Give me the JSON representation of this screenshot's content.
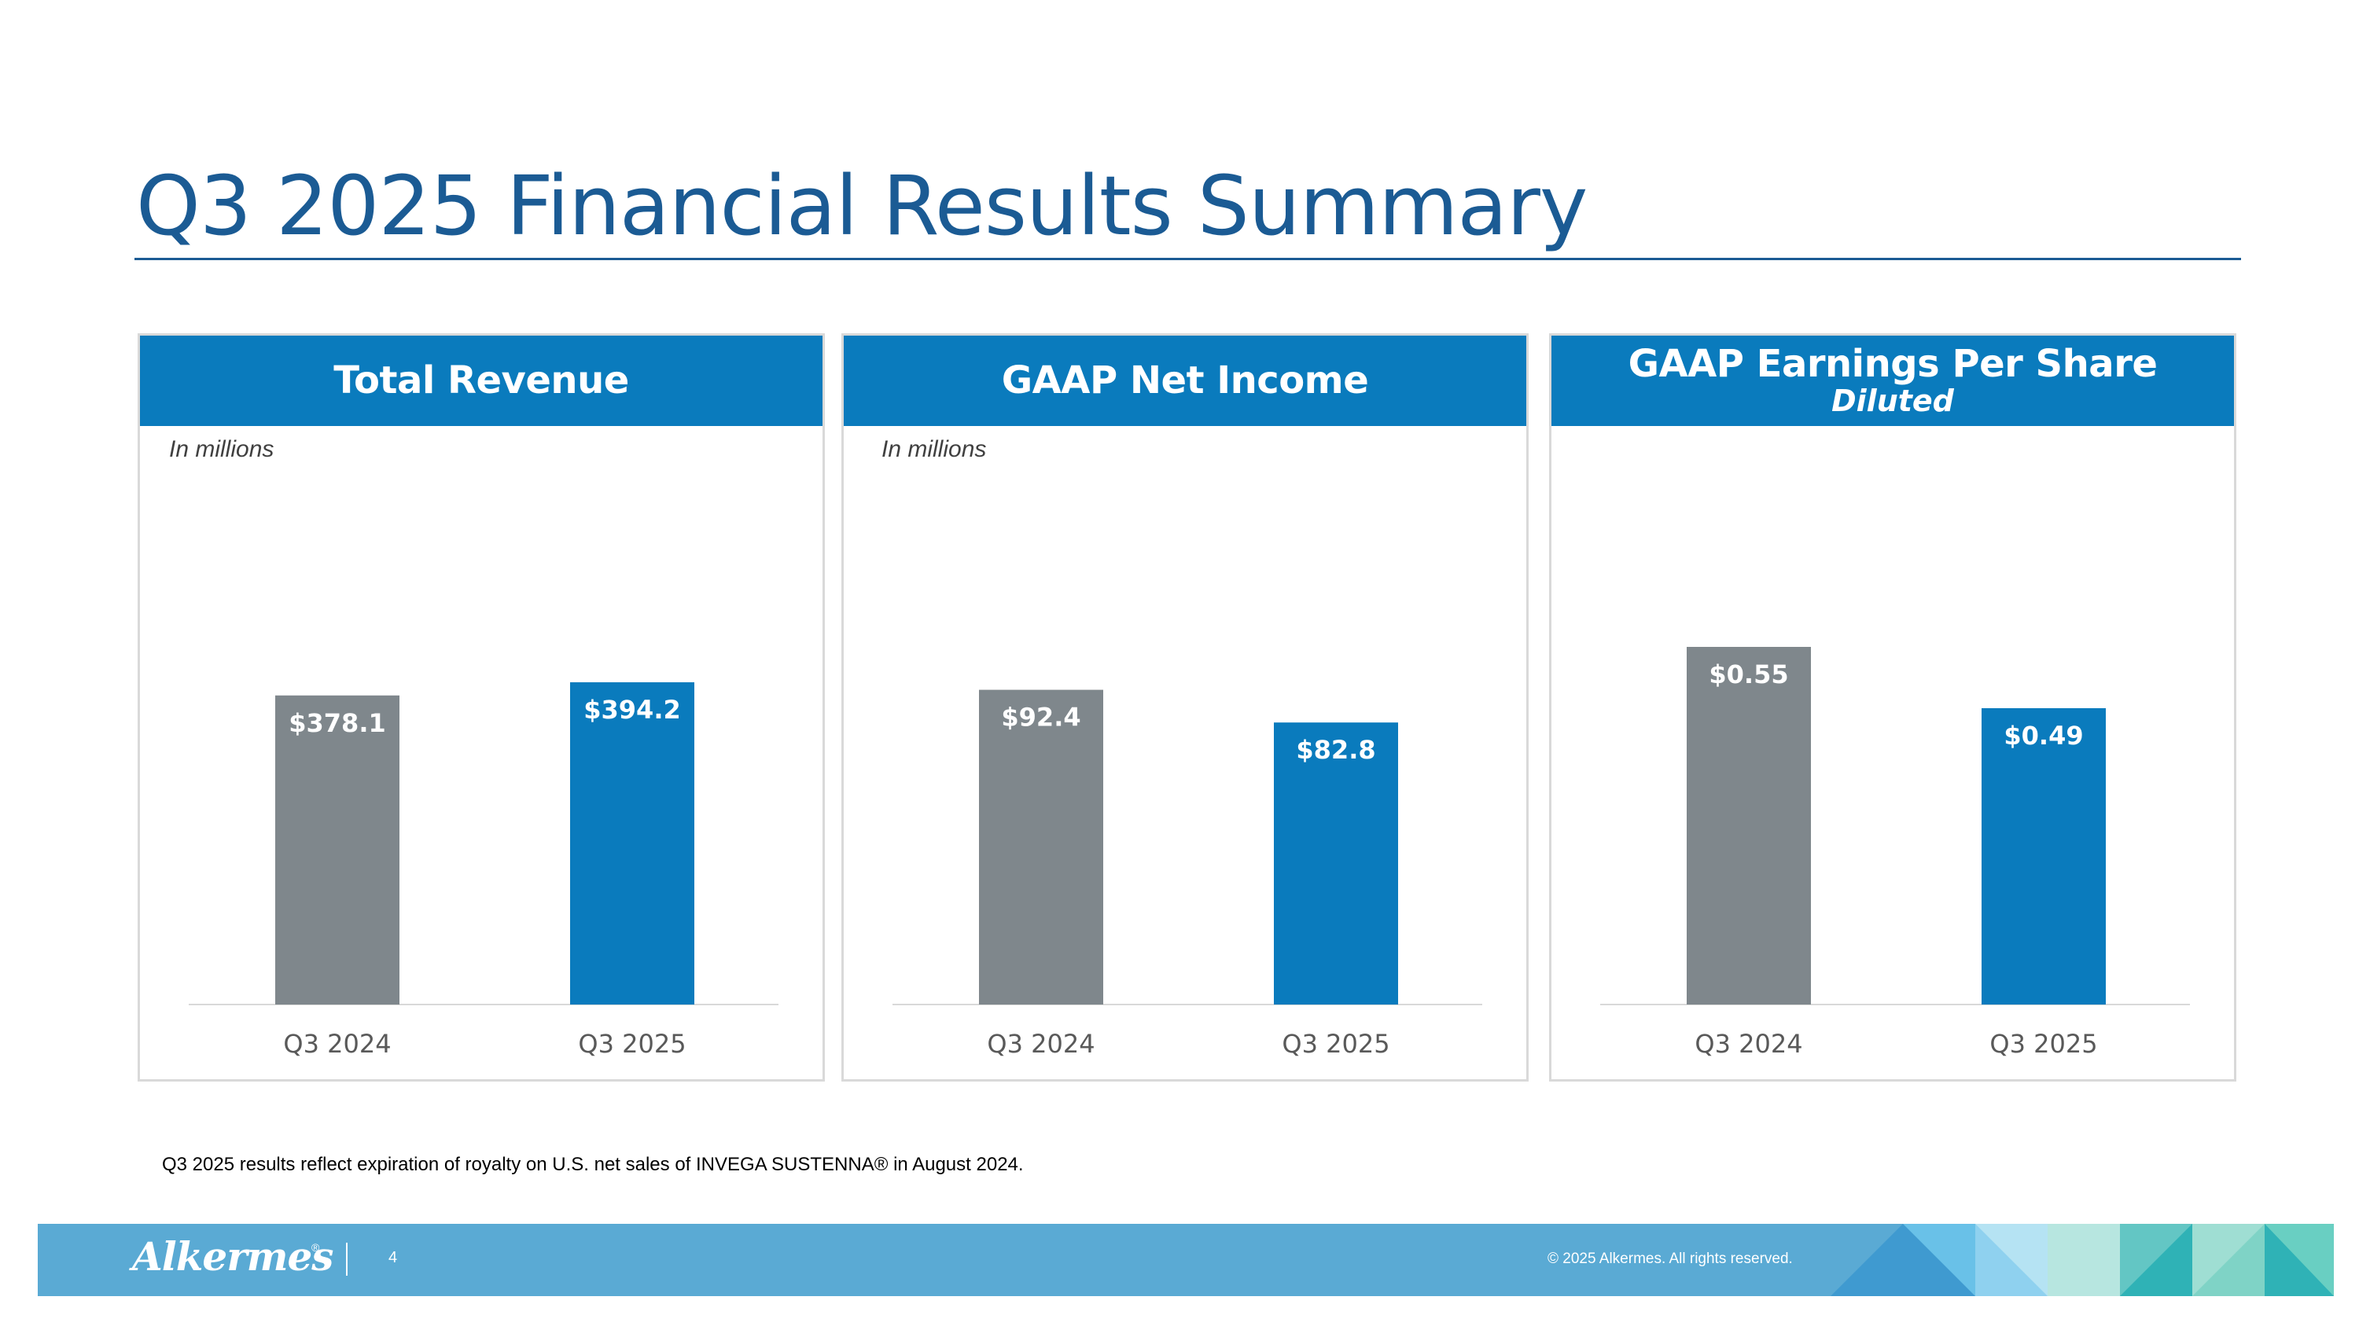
{
  "title": "Q3 2025 Financial Results Summary",
  "colors": {
    "title": "#1b5b94",
    "header": "#0a7bbd",
    "bar_prior": "#7f878c",
    "bar_current": "#0a7bbd",
    "footer": "#5aaad4"
  },
  "panels": [
    {
      "header": "Total Revenue",
      "subheader": "",
      "note": "In millions"
    },
    {
      "header": "GAAP Net Income",
      "subheader": "",
      "note": "In millions"
    },
    {
      "header": "GAAP Earnings Per Share",
      "subheader": "Diluted",
      "note": ""
    }
  ],
  "chart_data": [
    {
      "type": "bar",
      "title": "Total Revenue",
      "ylabel": "In millions",
      "categories": [
        "Q3 2024",
        "Q3 2025"
      ],
      "values": [
        378.1,
        394.2
      ],
      "labels": [
        "$378.1",
        "$394.2"
      ],
      "ylim": [
        0,
        500
      ],
      "grid": false,
      "legend": "none"
    },
    {
      "type": "bar",
      "title": "GAAP Net Income",
      "ylabel": "In millions",
      "categories": [
        "Q3 2024",
        "Q3 2025"
      ],
      "values": [
        92.4,
        82.8
      ],
      "labels": [
        "$92.4",
        "$82.8"
      ],
      "ylim": [
        0,
        120
      ],
      "grid": false,
      "legend": "none"
    },
    {
      "type": "bar",
      "title": "GAAP Earnings Per Share Diluted",
      "ylabel": "",
      "categories": [
        "Q3 2024",
        "Q3 2025"
      ],
      "values": [
        0.55,
        0.49
      ],
      "labels": [
        "$0.55",
        "$0.49"
      ],
      "ylim": [
        0.2,
        0.6
      ],
      "grid": false,
      "legend": "none"
    }
  ],
  "footnote": "Q3 2025 results reflect expiration of royalty on U.S. net sales of INVEGA SUSTENNA® in August 2024.",
  "footer": {
    "logo": "Alkermes",
    "logo_mark": "®",
    "page_number": "4",
    "copyright": "© 2025 Alkermes. All rights reserved."
  }
}
